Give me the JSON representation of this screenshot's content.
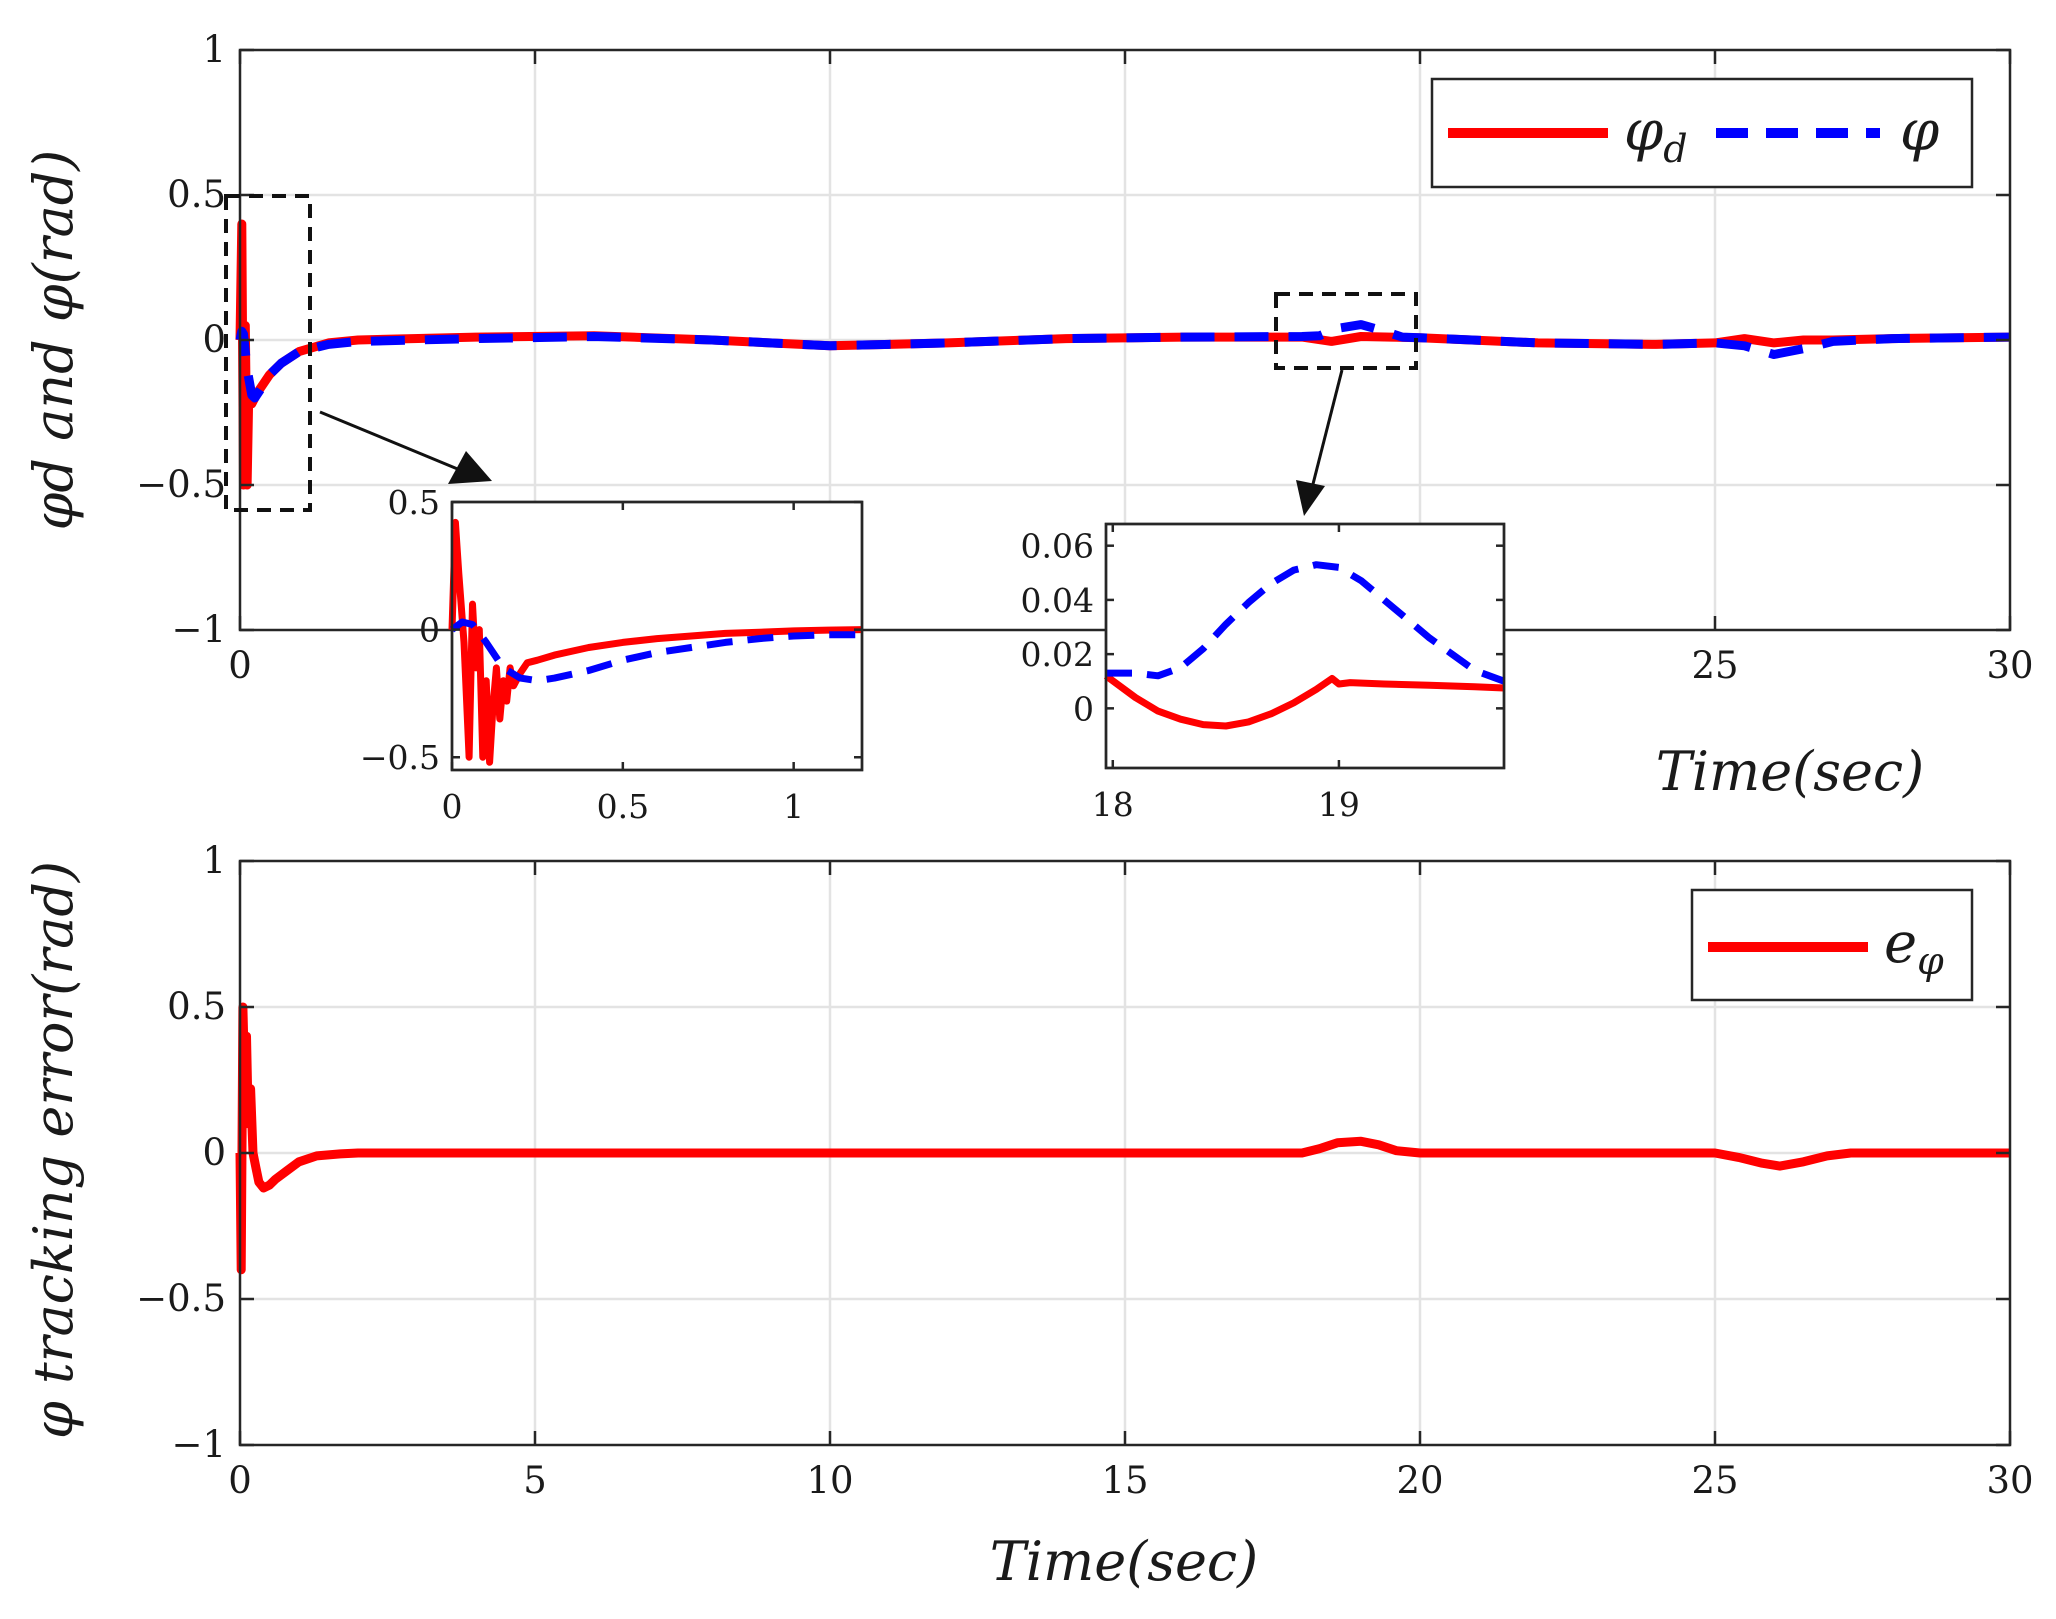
{
  "chart_data": [
    {
      "id": "top",
      "type": "line",
      "title": "",
      "xlabel": "Time(sec)",
      "ylabel": "φd and φ(rad)",
      "xlim": [
        0,
        30
      ],
      "ylim": [
        -1,
        1
      ],
      "xticks": [
        0,
        5,
        10,
        15,
        20,
        25,
        30
      ],
      "xtick_labels": [
        "0",
        "",
        "",
        "",
        "",
        "25",
        "30"
      ],
      "yticks": [
        -1,
        -0.5,
        0,
        0.5,
        1
      ],
      "ytick_labels": [
        "−1",
        "−0.5",
        "0",
        "0.5",
        "1"
      ],
      "grid": true,
      "legend_position": "top-right",
      "legend": [
        {
          "name": "φd",
          "main": "φ",
          "sub": "d",
          "color": "#ff0000",
          "style": "solid"
        },
        {
          "name": "φ",
          "main": "φ",
          "sub": "",
          "color": "#0000ff",
          "style": "dashed"
        }
      ],
      "series": [
        {
          "name": "φd",
          "color": "#ff0000",
          "style": "solid",
          "x": [
            0,
            0.03,
            0.06,
            0.09,
            0.12,
            0.15,
            0.2,
            0.3,
            0.5,
            0.7,
            1.0,
            1.5,
            2,
            4,
            6,
            8,
            10,
            12,
            14,
            16,
            18,
            18.5,
            19,
            19.5,
            20,
            22,
            24,
            25,
            25.5,
            26,
            26.5,
            27,
            28,
            30
          ],
          "values": [
            0.0,
            0.4,
            -0.5,
            0.05,
            -0.5,
            -0.18,
            -0.22,
            -0.18,
            -0.12,
            -0.08,
            -0.04,
            -0.01,
            0.0,
            0.01,
            0.015,
            0.0,
            -0.02,
            -0.01,
            0.005,
            0.01,
            0.01,
            -0.005,
            0.012,
            0.01,
            0.008,
            -0.01,
            -0.015,
            -0.01,
            0.005,
            -0.01,
            0.0,
            0.0,
            0.005,
            0.01
          ]
        },
        {
          "name": "φ",
          "color": "#0000ff",
          "style": "dashed",
          "x": [
            0,
            0.03,
            0.06,
            0.12,
            0.2,
            0.25,
            0.35,
            0.5,
            0.7,
            1.0,
            1.5,
            2,
            4,
            6,
            8,
            10,
            12,
            14,
            16,
            18,
            18.3,
            18.6,
            19,
            19.4,
            19.7,
            20,
            22,
            24,
            25,
            25.5,
            26,
            26.5,
            27,
            28,
            30
          ],
          "values": [
            0.0,
            0.03,
            0.02,
            -0.1,
            -0.19,
            -0.2,
            -0.17,
            -0.12,
            -0.08,
            -0.04,
            -0.015,
            -0.005,
            0.005,
            0.012,
            0.0,
            -0.02,
            -0.01,
            0.005,
            0.01,
            0.012,
            0.015,
            0.04,
            0.053,
            0.03,
            0.01,
            0.008,
            -0.01,
            -0.015,
            -0.01,
            -0.02,
            -0.05,
            -0.03,
            -0.005,
            0.005,
            0.01
          ]
        }
      ]
    },
    {
      "id": "inset1",
      "type": "line",
      "xlim": [
        0,
        1.2
      ],
      "ylim": [
        -0.55,
        0.5
      ],
      "xticks": [
        0,
        0.5,
        1
      ],
      "xtick_labels": [
        "0",
        "0.5",
        "1"
      ],
      "yticks": [
        -0.5,
        0,
        0.5
      ],
      "ytick_labels": [
        "−0.5",
        "0",
        "0.5"
      ],
      "grid": false,
      "series": [
        {
          "name": "φd",
          "color": "#ff0000",
          "style": "solid",
          "x": [
            0,
            0.01,
            0.02,
            0.035,
            0.05,
            0.06,
            0.07,
            0.08,
            0.09,
            0.1,
            0.11,
            0.12,
            0.13,
            0.14,
            0.15,
            0.16,
            0.17,
            0.18,
            0.2,
            0.22,
            0.25,
            0.3,
            0.4,
            0.5,
            0.6,
            0.7,
            0.8,
            0.9,
            1.0,
            1.1,
            1.2
          ],
          "values": [
            0.0,
            0.42,
            0.22,
            -0.05,
            -0.5,
            0.1,
            -0.15,
            0.0,
            -0.5,
            -0.2,
            -0.52,
            -0.3,
            -0.15,
            -0.35,
            -0.2,
            -0.28,
            -0.15,
            -0.22,
            -0.17,
            -0.13,
            -0.12,
            -0.1,
            -0.07,
            -0.05,
            -0.035,
            -0.025,
            -0.015,
            -0.01,
            -0.005,
            -0.002,
            0.0
          ]
        },
        {
          "name": "φ",
          "color": "#0000ff",
          "style": "dashed",
          "x": [
            0,
            0.03,
            0.06,
            0.1,
            0.15,
            0.2,
            0.25,
            0.3,
            0.4,
            0.5,
            0.6,
            0.7,
            0.8,
            0.9,
            1.0,
            1.1,
            1.2
          ],
          "values": [
            0.0,
            0.03,
            0.02,
            -0.05,
            -0.15,
            -0.19,
            -0.2,
            -0.19,
            -0.16,
            -0.12,
            -0.09,
            -0.07,
            -0.05,
            -0.035,
            -0.025,
            -0.02,
            -0.02
          ]
        }
      ]
    },
    {
      "id": "inset2",
      "type": "line",
      "xlim": [
        17.97,
        19.73
      ],
      "ylim": [
        -0.022,
        0.068
      ],
      "xticks": [
        18,
        19
      ],
      "xtick_labels": [
        "18",
        "19"
      ],
      "yticks": [
        0,
        0.02,
        0.04,
        0.06
      ],
      "ytick_labels": [
        "0",
        "0.02",
        "0.04",
        "0.06"
      ],
      "grid": false,
      "series": [
        {
          "name": "φd",
          "color": "#ff0000",
          "style": "solid",
          "x": [
            17.97,
            18.1,
            18.2,
            18.3,
            18.4,
            18.5,
            18.6,
            18.7,
            18.8,
            18.9,
            18.97,
            19.0,
            19.05,
            19.2,
            19.4,
            19.6,
            19.73
          ],
          "values": [
            0.012,
            0.004,
            -0.001,
            -0.004,
            -0.006,
            -0.0065,
            -0.005,
            -0.002,
            0.002,
            0.007,
            0.011,
            0.009,
            0.0095,
            0.009,
            0.0085,
            0.008,
            0.0075
          ]
        },
        {
          "name": "φ",
          "color": "#0000ff",
          "style": "dashed",
          "x": [
            17.97,
            18.1,
            18.2,
            18.3,
            18.4,
            18.5,
            18.6,
            18.7,
            18.8,
            18.9,
            19.0,
            19.1,
            19.2,
            19.3,
            19.4,
            19.5,
            19.6,
            19.73
          ],
          "values": [
            0.013,
            0.013,
            0.012,
            0.015,
            0.022,
            0.031,
            0.039,
            0.046,
            0.051,
            0.053,
            0.052,
            0.047,
            0.04,
            0.033,
            0.026,
            0.02,
            0.014,
            0.01
          ]
        }
      ]
    },
    {
      "id": "bottom",
      "type": "line",
      "title": "",
      "xlabel": "Time(sec)",
      "ylabel": "φ tracking error(rad)",
      "xlim": [
        0,
        30
      ],
      "ylim": [
        -1,
        1
      ],
      "xticks": [
        0,
        5,
        10,
        15,
        20,
        25,
        30
      ],
      "xtick_labels": [
        "0",
        "5",
        "10",
        "15",
        "20",
        "25",
        "30"
      ],
      "yticks": [
        -1,
        -0.5,
        0,
        0.5,
        1
      ],
      "ytick_labels": [
        "−1",
        "−0.5",
        "0",
        "0.5",
        "1"
      ],
      "grid": true,
      "legend_position": "top-right",
      "legend": [
        {
          "name": "eφ",
          "main": "e",
          "sub": "φ",
          "color": "#ff0000",
          "style": "solid"
        }
      ],
      "series": [
        {
          "name": "eφ",
          "color": "#ff0000",
          "style": "solid",
          "x": [
            0,
            0.02,
            0.05,
            0.08,
            0.11,
            0.14,
            0.18,
            0.22,
            0.27,
            0.32,
            0.4,
            0.5,
            0.6,
            0.8,
            1.0,
            1.3,
            1.7,
            2,
            5,
            10,
            15,
            18,
            18.3,
            18.6,
            19,
            19.3,
            19.6,
            20,
            22,
            25,
            25.4,
            25.8,
            26.1,
            26.5,
            26.9,
            27.3,
            28,
            30
          ],
          "values": [
            0,
            -0.4,
            0.5,
            0.25,
            0.4,
            0.1,
            0.22,
            0.0,
            -0.05,
            -0.1,
            -0.12,
            -0.11,
            -0.09,
            -0.06,
            -0.03,
            -0.01,
            -0.003,
            0.0,
            0.0,
            0.0,
            0.0,
            0.0,
            0.015,
            0.035,
            0.04,
            0.028,
            0.008,
            0.0,
            0.0,
            0.0,
            -0.015,
            -0.035,
            -0.045,
            -0.03,
            -0.01,
            0.0,
            0.0,
            0.0
          ]
        }
      ]
    }
  ]
}
